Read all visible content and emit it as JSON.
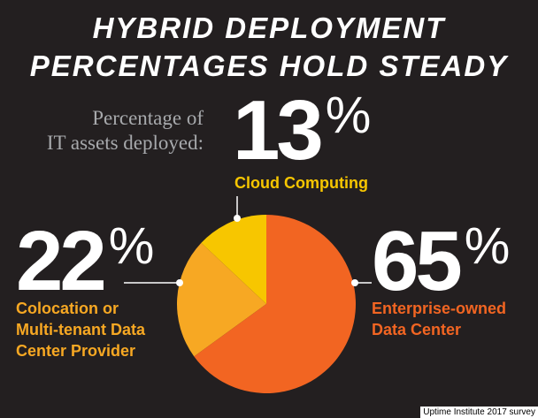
{
  "chart_data": {
    "type": "pie",
    "title": [
      "HYBRID DEPLOYMENT",
      "PERCENTAGES HOLD STEADY"
    ],
    "subtitle": [
      "Percentage of",
      "IT assets deployed:"
    ],
    "categories": [
      "Cloud Computing",
      "Colocation or Multi-tenant Data Center Provider",
      "Enterprise-owned Data Center"
    ],
    "values": [
      13,
      22,
      65
    ],
    "value_labels": [
      "13%",
      "22%",
      "65%"
    ],
    "colors": [
      "#f7c600",
      "#f7a823",
      "#f26522"
    ],
    "source": "Uptime Institute 2017 survey"
  }
}
